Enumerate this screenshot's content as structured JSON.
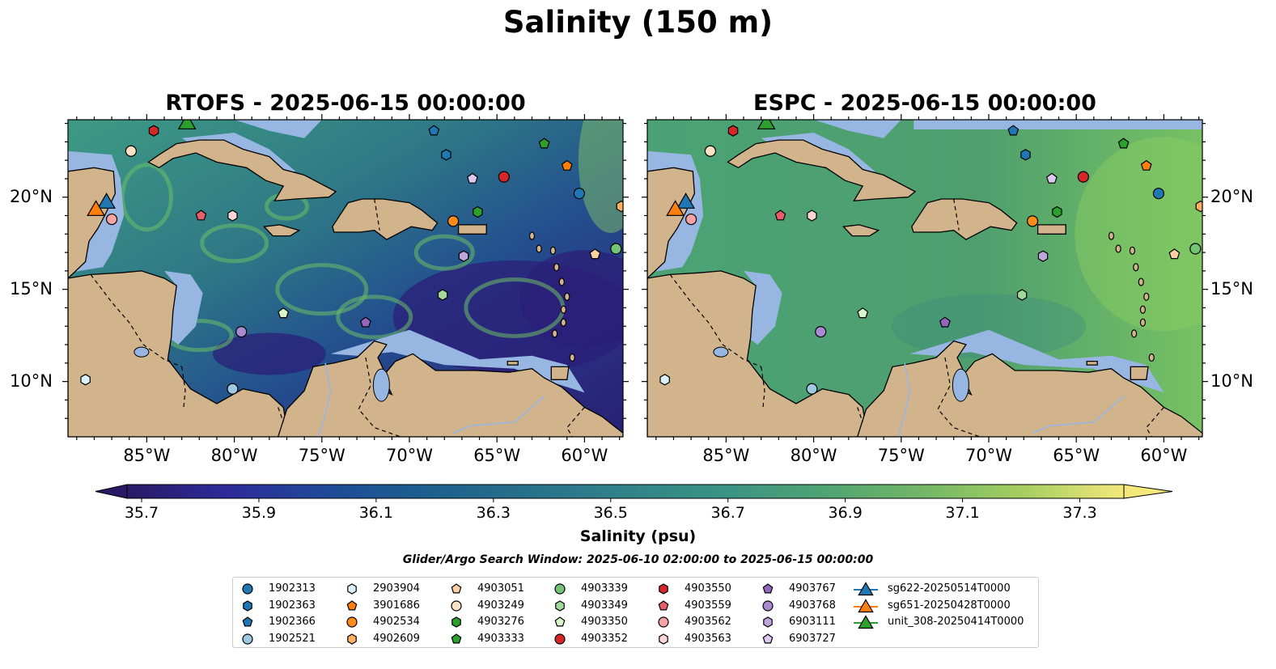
{
  "figure": {
    "title": "Salinity (150 m)",
    "panels": [
      {
        "title": "RTOFS - 2025-06-15 00:00:00"
      },
      {
        "title": "ESPC - 2025-06-15 00:00:00"
      }
    ],
    "lon_ticks": [
      "85°W",
      "80°W",
      "75°W",
      "70°W",
      "65°W",
      "60°W"
    ],
    "lat_ticks": [
      "20°N",
      "15°N",
      "10°N"
    ],
    "extent": {
      "lon": [
        -89.5,
        -57.8
      ],
      "lat": [
        7.0,
        24.2
      ]
    },
    "colorbar": {
      "label": "Salinity (psu)",
      "ticks": [
        "35.7",
        "35.9",
        "36.1",
        "36.3",
        "36.5",
        "36.7",
        "36.9",
        "37.1",
        "37.3"
      ],
      "range": [
        35.7,
        37.4
      ],
      "colormap": "haline"
    },
    "search_window": "Glider/Argo Search Window: 2025-06-10 02:00:00 to 2025-06-15 00:00:00",
    "colors": {
      "land": "#d2b48c",
      "shallow_water": "#97b6e1",
      "deep_low": "#2a1a66"
    }
  },
  "legend": {
    "items": [
      {
        "label": "1902313",
        "marker": "circle",
        "color": "#1f77b4"
      },
      {
        "label": "1902363",
        "marker": "hexagon",
        "color": "#1f77b4"
      },
      {
        "label": "1902366",
        "marker": "pentagon",
        "color": "#1f77b4"
      },
      {
        "label": "1902521",
        "marker": "circle",
        "color": "#9ecae1"
      },
      {
        "label": "2903904",
        "marker": "hexagon",
        "color": "#dbf3fb"
      },
      {
        "label": "3901686",
        "marker": "pentagon",
        "color": "#ff7f0e"
      },
      {
        "label": "4902534",
        "marker": "circle",
        "color": "#ff8c1a"
      },
      {
        "label": "4902609",
        "marker": "hexagon",
        "color": "#ffb061"
      },
      {
        "label": "4903051",
        "marker": "pentagon",
        "color": "#fdd0a2"
      },
      {
        "label": "4903249",
        "marker": "circle",
        "color": "#fde2c4"
      },
      {
        "label": "4903276",
        "marker": "hexagon",
        "color": "#2ca02c"
      },
      {
        "label": "4903333",
        "marker": "pentagon",
        "color": "#2ca02c"
      },
      {
        "label": "4903339",
        "marker": "circle",
        "color": "#74c476"
      },
      {
        "label": "4903349",
        "marker": "hexagon",
        "color": "#a1d99b"
      },
      {
        "label": "4903350",
        "marker": "pentagon",
        "color": "#d9f5c9"
      },
      {
        "label": "4903352",
        "marker": "circle",
        "color": "#d62728"
      },
      {
        "label": "4903550",
        "marker": "hexagon",
        "color": "#d62728"
      },
      {
        "label": "4903559",
        "marker": "pentagon",
        "color": "#e85d6a"
      },
      {
        "label": "4903562",
        "marker": "circle",
        "color": "#f4a3a3"
      },
      {
        "label": "4903563",
        "marker": "hexagon",
        "color": "#fcd5d5"
      },
      {
        "label": "4903767",
        "marker": "pentagon",
        "color": "#9467bd"
      },
      {
        "label": "4903768",
        "marker": "circle",
        "color": "#a98ad0"
      },
      {
        "label": "6903111",
        "marker": "hexagon",
        "color": "#bea5dc"
      },
      {
        "label": "6903727",
        "marker": "pentagon",
        "color": "#dcc8f0"
      },
      {
        "label": "sg622-20250514T0000",
        "marker": "triangle",
        "color": "#1f77b4"
      },
      {
        "label": "sg651-20250428T0000",
        "marker": "triangle",
        "color": "#ff7f0e"
      },
      {
        "label": "unit_308-20250414T0000",
        "marker": "triangle",
        "color": "#2ca02c"
      }
    ]
  },
  "map_data": {
    "argo_floats": [
      {
        "id": "1902313",
        "lon": -60.3,
        "lat": 20.2
      },
      {
        "id": "1902363",
        "lon": -67.9,
        "lat": 22.3
      },
      {
        "id": "1902366",
        "lon": -68.6,
        "lat": 23.6
      },
      {
        "id": "1902521",
        "lon": -80.1,
        "lat": 9.6
      },
      {
        "id": "2903904",
        "lon": -88.5,
        "lat": 10.1
      },
      {
        "id": "3901686",
        "lon": -61.0,
        "lat": 21.7
      },
      {
        "id": "4902534",
        "lon": -67.5,
        "lat": 18.7
      },
      {
        "id": "4902609",
        "lon": -57.9,
        "lat": 19.5
      },
      {
        "id": "4903051",
        "lon": -59.4,
        "lat": 16.9
      },
      {
        "id": "4903249",
        "lon": -85.9,
        "lat": 22.5
      },
      {
        "id": "4903276",
        "lon": -66.1,
        "lat": 19.2
      },
      {
        "id": "4903333",
        "lon": -62.3,
        "lat": 22.9
      },
      {
        "id": "4903339",
        "lon": -58.2,
        "lat": 17.2
      },
      {
        "id": "4903349",
        "lon": -68.1,
        "lat": 14.7
      },
      {
        "id": "4903350",
        "lon": -77.2,
        "lat": 13.7
      },
      {
        "id": "4903352",
        "lon": -64.6,
        "lat": 21.1
      },
      {
        "id": "4903550",
        "lon": -84.6,
        "lat": 23.6
      },
      {
        "id": "4903559",
        "lon": -81.9,
        "lat": 19.0
      },
      {
        "id": "4903562",
        "lon": -87.0,
        "lat": 18.8
      },
      {
        "id": "4903563",
        "lon": -80.1,
        "lat": 19.0
      },
      {
        "id": "4903767",
        "lon": -72.5,
        "lat": 13.2
      },
      {
        "id": "4903768",
        "lon": -79.6,
        "lat": 12.7
      },
      {
        "id": "6903111",
        "lon": -66.9,
        "lat": 16.8
      },
      {
        "id": "6903727",
        "lon": -66.4,
        "lat": 21.0
      }
    ],
    "gliders": [
      {
        "id": "sg622-20250514T0000",
        "lon": -87.3,
        "lat": 19.8
      },
      {
        "id": "sg651-20250428T0000",
        "lon": -87.9,
        "lat": 19.4
      },
      {
        "id": "unit_308-20250414T0000",
        "lon": -82.7,
        "lat": 24.1
      }
    ]
  }
}
